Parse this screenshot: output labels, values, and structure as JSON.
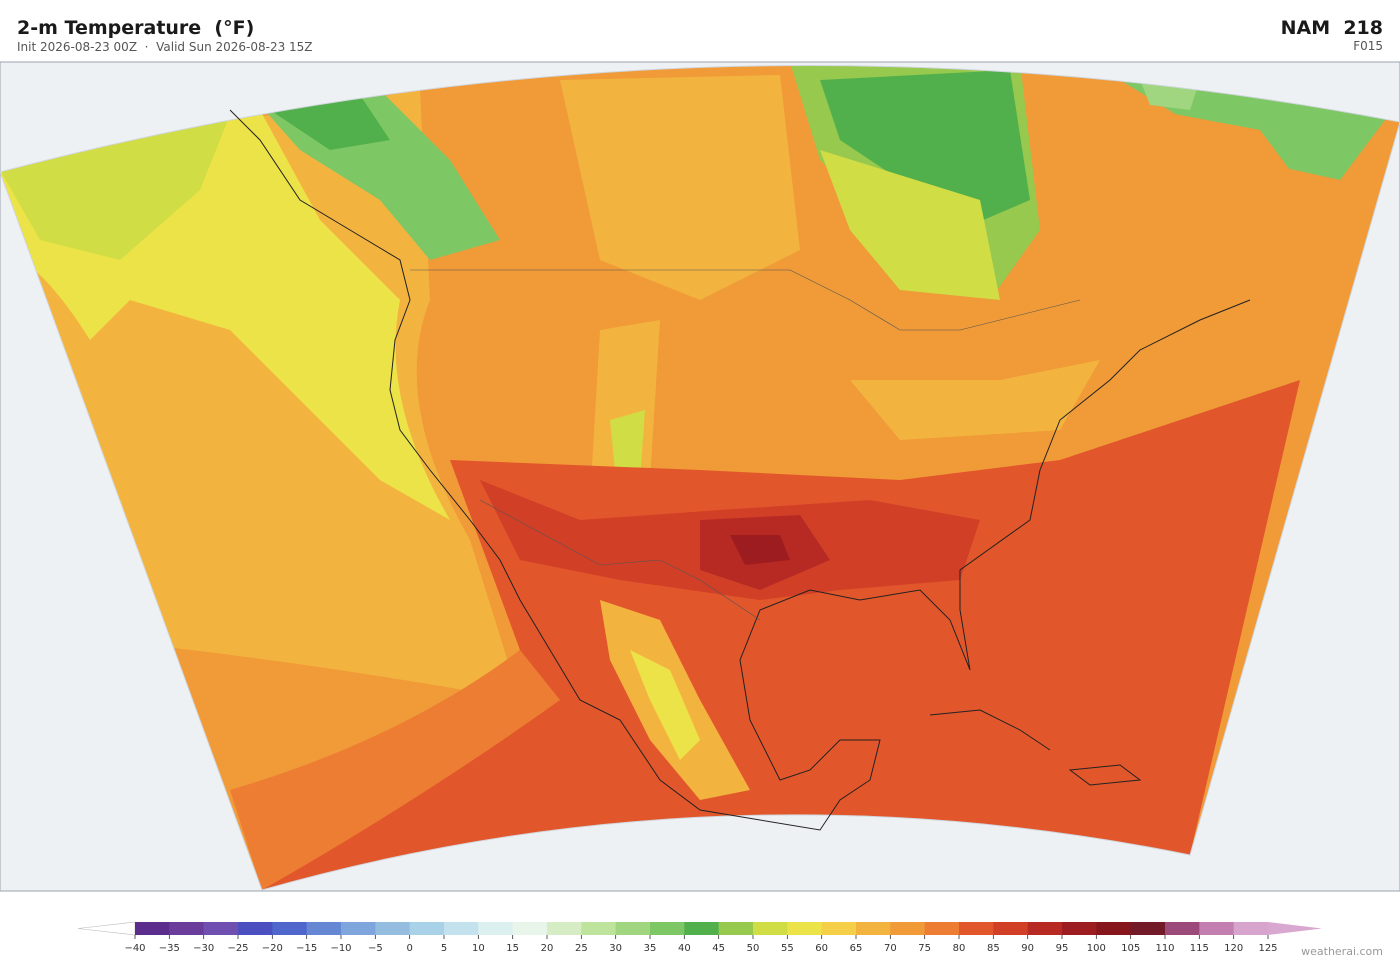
{
  "header": {
    "title": "2-m Temperature  (°F)",
    "subtitle": "Init 2026-08-23 00Z  ·  Valid Sun 2026-08-23 15Z",
    "model": "NAM  218",
    "forecast_hour": "F015"
  },
  "colorbar": {
    "ticks": [
      {
        "value": -40,
        "label": "−40"
      },
      {
        "value": -35,
        "label": "−35"
      },
      {
        "value": -30,
        "label": "−30"
      },
      {
        "value": -25,
        "label": "−25"
      },
      {
        "value": -20,
        "label": "−20"
      },
      {
        "value": -15,
        "label": "−15"
      },
      {
        "value": -10,
        "label": "−10"
      },
      {
        "value": -5,
        "label": "−5"
      },
      0,
      5,
      10,
      15,
      20,
      25,
      30,
      35,
      40,
      45,
      50,
      55,
      60,
      65,
      70,
      75,
      80,
      85,
      90,
      95,
      100,
      105,
      110,
      115,
      120,
      125
    ],
    "colors": [
      "#5b2e8e",
      "#6a3d9a",
      "#6f4fb0",
      "#4b4fc0",
      "#4f66cc",
      "#6688d4",
      "#7fa6dc",
      "#94bde0",
      "#a9d2e8",
      "#c3e2ee",
      "#dcf0f0",
      "#e8f5ea",
      "#d5ecc5",
      "#bde39d",
      "#9fd67f",
      "#7dc764",
      "#52b04c",
      "#98c94f",
      "#d1dd44",
      "#ece348",
      "#f4cf47",
      "#f3b43f",
      "#f09a38",
      "#ec7d33",
      "#e2562b",
      "#d13f27",
      "#b72a23",
      "#9c1c1f",
      "#86161c",
      "#731a28",
      "#9b4a7a",
      "#c27fb0",
      "#d6a4cc"
    ],
    "under_color": "#ffffff",
    "over_color": "#d8a8d0"
  },
  "footer": {
    "credit": "weatherai.com"
  }
}
